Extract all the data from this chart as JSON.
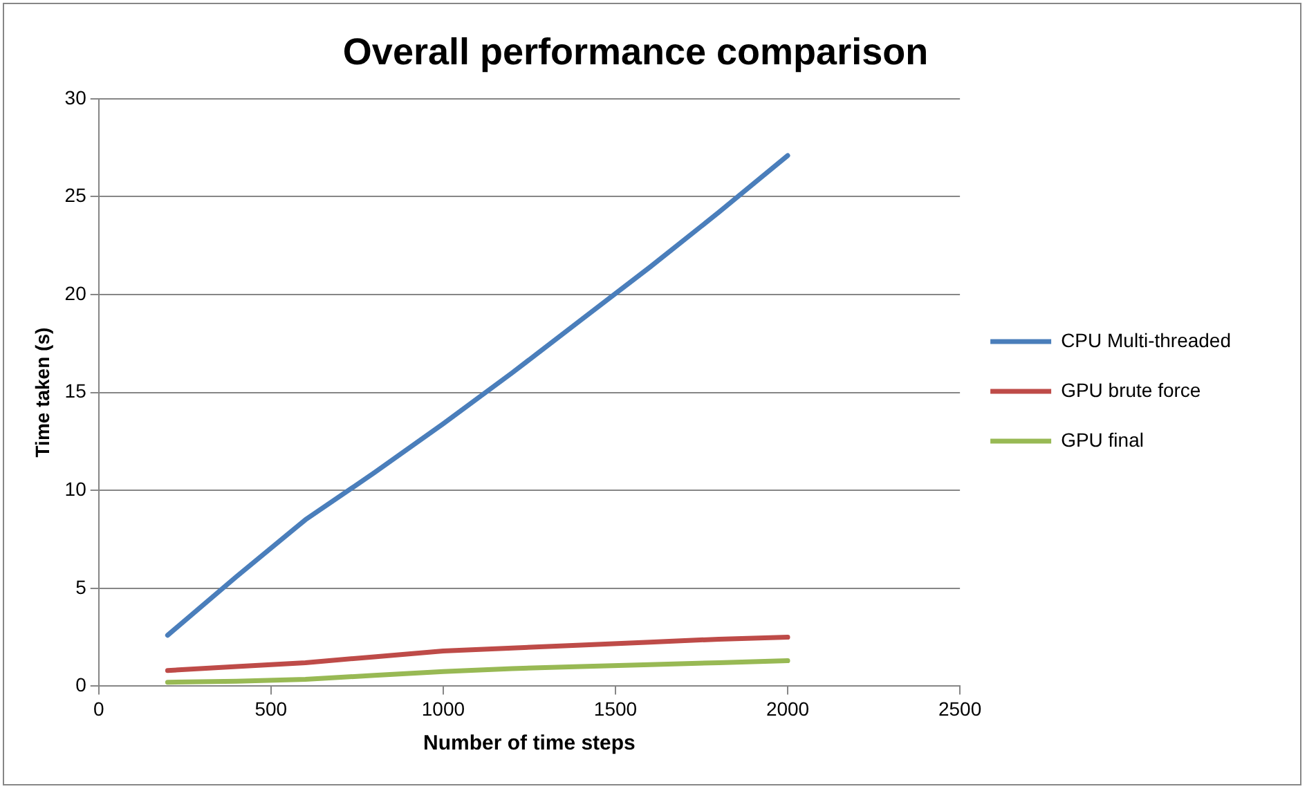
{
  "chart_data": {
    "type": "line",
    "title": "Overall performance comparison",
    "xlabel": "Number of time steps",
    "ylabel": "Time taken (s)",
    "x": [
      200,
      400,
      600,
      800,
      1000,
      1200,
      1400,
      1600,
      1800,
      2000
    ],
    "series": [
      {
        "name": "CPU Multi-threaded",
        "color": "#4a7ebb",
        "values": [
          2.6,
          5.6,
          8.5,
          10.9,
          13.4,
          16.0,
          18.7,
          21.4,
          24.2,
          27.1
        ]
      },
      {
        "name": "GPU brute force",
        "color": "#be4b48",
        "values": [
          0.8,
          1.0,
          1.2,
          1.5,
          1.8,
          1.95,
          2.1,
          2.25,
          2.4,
          2.5
        ]
      },
      {
        "name": "GPU final",
        "color": "#98b954",
        "values": [
          0.2,
          0.25,
          0.35,
          0.55,
          0.75,
          0.9,
          1.0,
          1.1,
          1.2,
          1.3
        ]
      }
    ],
    "xlim": [
      0,
      2500
    ],
    "xticks": [
      0,
      500,
      1000,
      1500,
      2000,
      2500
    ],
    "ylim": [
      0,
      30
    ],
    "yticks": [
      0,
      5,
      10,
      15,
      20,
      25,
      30
    ],
    "grid": "y",
    "legend": "right",
    "marker": "none",
    "line_style": "solid"
  }
}
